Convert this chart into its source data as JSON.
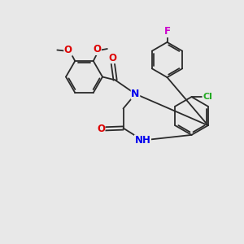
{
  "background_color": "#e8e8e8",
  "bond_color": "#2a2a2a",
  "figsize": [
    3.0,
    3.0
  ],
  "dpi": 100,
  "colors": {
    "F": "#cc00cc",
    "O": "#dd0000",
    "N": "#0000ee",
    "Cl": "#22aa22",
    "bond": "#2a2a2a"
  },
  "lw": 1.3
}
